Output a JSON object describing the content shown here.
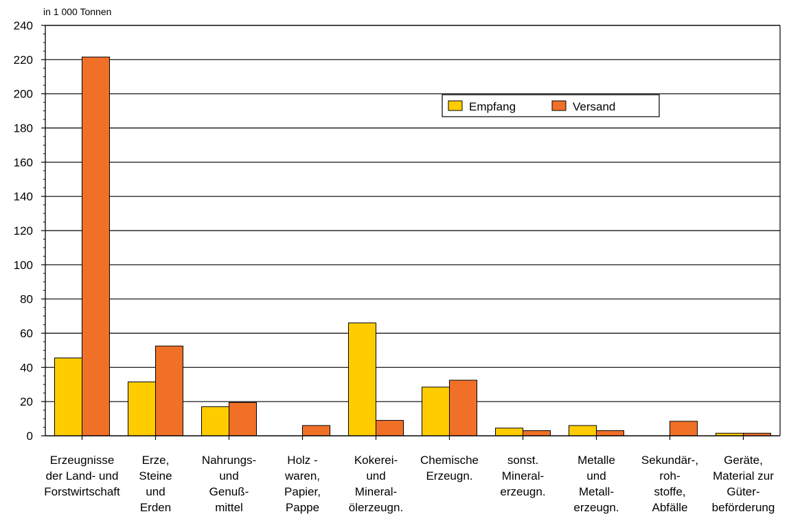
{
  "chart_data": {
    "type": "bar",
    "unit_label": "in 1 000 Tonnen",
    "ylim": [
      0,
      240
    ],
    "y_ticks": [
      "0",
      "20",
      "40",
      "60",
      "80",
      "100",
      "120",
      "140",
      "160",
      "180",
      "200",
      "220",
      "240"
    ],
    "grid": true,
    "legend_position": "top-right",
    "categories": [
      [
        "Erzeugnisse",
        "der Land- und",
        "Forstwirtschaft"
      ],
      [
        "Erze,",
        "Steine",
        "und",
        "Erden"
      ],
      [
        "Nahrungs-",
        "und",
        "Genuß-",
        "mittel"
      ],
      [
        "Holz -",
        "waren,",
        "Papier,",
        "Pappe"
      ],
      [
        "Kokerei-",
        "und",
        "Mineral-",
        "ölerzeugn."
      ],
      [
        "Chemische",
        "Erzeugn."
      ],
      [
        "sonst.",
        "Mineral-",
        "erzeugn."
      ],
      [
        "Metalle",
        "und",
        "Metall-",
        "erzeugn."
      ],
      [
        "Sekundär-,",
        "roh-",
        "stoffe,",
        "Abfälle"
      ],
      [
        "Geräte,",
        "Material zur",
        "Güter-",
        "beförderung"
      ]
    ],
    "series": [
      {
        "name": "Empfang",
        "color": "#FFCC00",
        "values": [
          45.5,
          31.5,
          17,
          0,
          66,
          28.5,
          4.5,
          6,
          0,
          1.5
        ]
      },
      {
        "name": "Versand",
        "color": "#F07028",
        "values": [
          221.5,
          52.5,
          19.5,
          6,
          9,
          32.5,
          3,
          3,
          8.5,
          1.5
        ]
      }
    ]
  }
}
